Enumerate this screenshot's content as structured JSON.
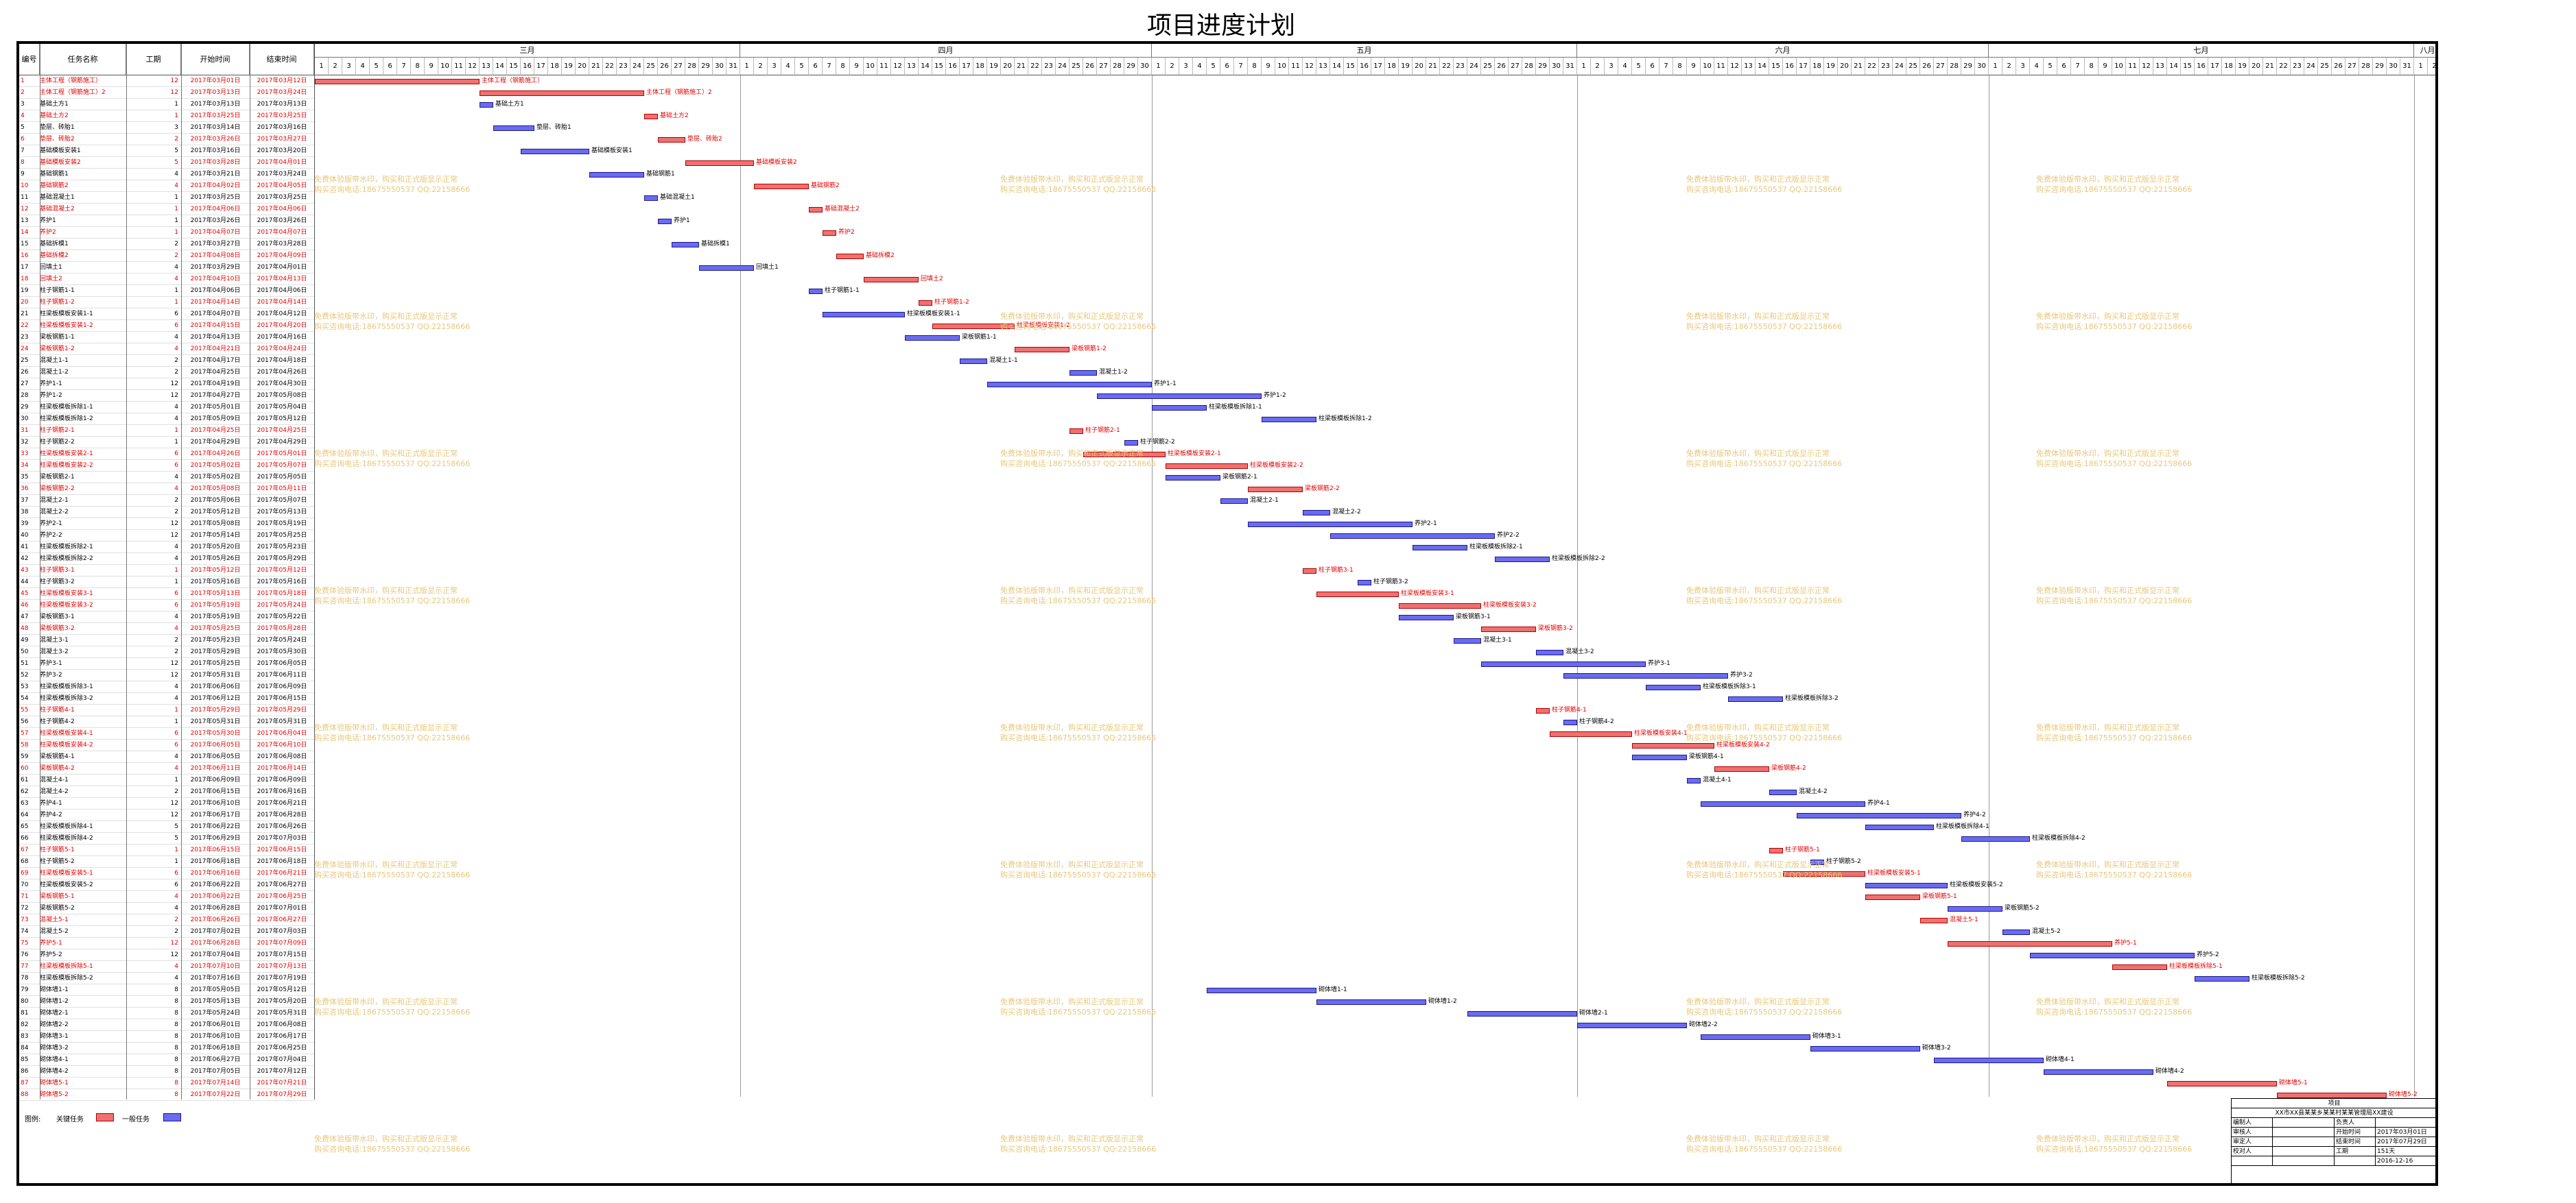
{
  "title": "项目进度计划",
  "columns": {
    "id": "编号",
    "name": "任务名称",
    "duration": "工期",
    "start": "开始时间",
    "end": "结束时间"
  },
  "months": [
    {
      "name": "三月",
      "days": 31,
      "from": 1
    },
    {
      "name": "四月",
      "days": 30,
      "from": 1
    },
    {
      "name": "五月",
      "days": 31,
      "from": 1
    },
    {
      "name": "六月",
      "days": 30,
      "from": 1
    },
    {
      "name": "七月",
      "days": 31,
      "from": 1
    },
    {
      "name": "八月",
      "days": 2,
      "from": 1
    }
  ],
  "tasks": [
    [
      "1",
      "主体工程（钢筋施工）",
      "12",
      "2017年03月01日",
      "2017年03月12日",
      1
    ],
    [
      "2",
      "主体工程（钢筋施工）2",
      "12",
      "2017年03月13日",
      "2017年03月24日",
      1
    ],
    [
      "3",
      "基础土方1",
      "1",
      "2017年03月13日",
      "2017年03月13日",
      0
    ],
    [
      "4",
      "基础土方2",
      "1",
      "2017年03月25日",
      "2017年03月25日",
      1
    ],
    [
      "5",
      "垫层、砖胎1",
      "3",
      "2017年03月14日",
      "2017年03月16日",
      0
    ],
    [
      "6",
      "垫层、砖胎2",
      "2",
      "2017年03月26日",
      "2017年03月27日",
      1
    ],
    [
      "7",
      "基础模板安装1",
      "5",
      "2017年03月16日",
      "2017年03月20日",
      0
    ],
    [
      "8",
      "基础模板安装2",
      "5",
      "2017年03月28日",
      "2017年04月01日",
      1
    ],
    [
      "9",
      "基础钢筋1",
      "4",
      "2017年03月21日",
      "2017年03月24日",
      0
    ],
    [
      "10",
      "基础钢筋2",
      "4",
      "2017年04月02日",
      "2017年04月05日",
      1
    ],
    [
      "11",
      "基础混凝土1",
      "1",
      "2017年03月25日",
      "2017年03月25日",
      0
    ],
    [
      "12",
      "基础混凝土2",
      "1",
      "2017年04月06日",
      "2017年04月06日",
      1
    ],
    [
      "13",
      "养护1",
      "1",
      "2017年03月26日",
      "2017年03月26日",
      0
    ],
    [
      "14",
      "养护2",
      "1",
      "2017年04月07日",
      "2017年04月07日",
      1
    ],
    [
      "15",
      "基础拆模1",
      "2",
      "2017年03月27日",
      "2017年03月28日",
      0
    ],
    [
      "16",
      "基础拆模2",
      "2",
      "2017年04月08日",
      "2017年04月09日",
      1
    ],
    [
      "17",
      "回填土1",
      "4",
      "2017年03月29日",
      "2017年04月01日",
      0
    ],
    [
      "18",
      "回填土2",
      "4",
      "2017年04月10日",
      "2017年04月13日",
      1
    ],
    [
      "19",
      "柱子钢筋1-1",
      "1",
      "2017年04月06日",
      "2017年04月06日",
      0
    ],
    [
      "20",
      "柱子钢筋1-2",
      "1",
      "2017年04月14日",
      "2017年04月14日",
      1
    ],
    [
      "21",
      "柱梁板模板安装1-1",
      "6",
      "2017年04月07日",
      "2017年04月12日",
      0
    ],
    [
      "22",
      "柱梁板模板安装1-2",
      "6",
      "2017年04月15日",
      "2017年04月20日",
      1
    ],
    [
      "23",
      "梁板钢筋1-1",
      "4",
      "2017年04月13日",
      "2017年04月16日",
      0
    ],
    [
      "24",
      "梁板钢筋1-2",
      "4",
      "2017年04月21日",
      "2017年04月24日",
      1
    ],
    [
      "25",
      "混凝土1-1",
      "2",
      "2017年04月17日",
      "2017年04月18日",
      0
    ],
    [
      "26",
      "混凝土1-2",
      "2",
      "2017年04月25日",
      "2017年04月26日",
      0
    ],
    [
      "27",
      "养护1-1",
      "12",
      "2017年04月19日",
      "2017年04月30日",
      0
    ],
    [
      "28",
      "养护1-2",
      "12",
      "2017年04月27日",
      "2017年05月08日",
      0
    ],
    [
      "29",
      "柱梁板模板拆除1-1",
      "4",
      "2017年05月01日",
      "2017年05月04日",
      0
    ],
    [
      "30",
      "柱梁板模板拆除1-2",
      "4",
      "2017年05月09日",
      "2017年05月12日",
      0
    ],
    [
      "31",
      "柱子钢筋2-1",
      "1",
      "2017年04月25日",
      "2017年04月25日",
      1
    ],
    [
      "32",
      "柱子钢筋2-2",
      "1",
      "2017年04月29日",
      "2017年04月29日",
      0
    ],
    [
      "33",
      "柱梁板模板安装2-1",
      "6",
      "2017年04月26日",
      "2017年05月01日",
      1
    ],
    [
      "34",
      "柱梁板模板安装2-2",
      "6",
      "2017年05月02日",
      "2017年05月07日",
      1
    ],
    [
      "35",
      "梁板钢筋2-1",
      "4",
      "2017年05月02日",
      "2017年05月05日",
      0
    ],
    [
      "36",
      "梁板钢筋2-2",
      "4",
      "2017年05月08日",
      "2017年05月11日",
      1
    ],
    [
      "37",
      "混凝土2-1",
      "2",
      "2017年05月06日",
      "2017年05月07日",
      0
    ],
    [
      "38",
      "混凝土2-2",
      "2",
      "2017年05月12日",
      "2017年05月13日",
      0
    ],
    [
      "39",
      "养护2-1",
      "12",
      "2017年05月08日",
      "2017年05月19日",
      0
    ],
    [
      "40",
      "养护2-2",
      "12",
      "2017年05月14日",
      "2017年05月25日",
      0
    ],
    [
      "41",
      "柱梁板模板拆除2-1",
      "4",
      "2017年05月20日",
      "2017年05月23日",
      0
    ],
    [
      "42",
      "柱梁板模板拆除2-2",
      "4",
      "2017年05月26日",
      "2017年05月29日",
      0
    ],
    [
      "43",
      "柱子钢筋3-1",
      "1",
      "2017年05月12日",
      "2017年05月12日",
      1
    ],
    [
      "44",
      "柱子钢筋3-2",
      "1",
      "2017年05月16日",
      "2017年05月16日",
      0
    ],
    [
      "45",
      "柱梁板模板安装3-1",
      "6",
      "2017年05月13日",
      "2017年05月18日",
      1
    ],
    [
      "46",
      "柱梁板模板安装3-2",
      "6",
      "2017年05月19日",
      "2017年05月24日",
      1
    ],
    [
      "47",
      "梁板钢筋3-1",
      "4",
      "2017年05月19日",
      "2017年05月22日",
      0
    ],
    [
      "48",
      "梁板钢筋3-2",
      "4",
      "2017年05月25日",
      "2017年05月28日",
      1
    ],
    [
      "49",
      "混凝土3-1",
      "2",
      "2017年05月23日",
      "2017年05月24日",
      0
    ],
    [
      "50",
      "混凝土3-2",
      "2",
      "2017年05月29日",
      "2017年05月30日",
      0
    ],
    [
      "51",
      "养护3-1",
      "12",
      "2017年05月25日",
      "2017年06月05日",
      0
    ],
    [
      "52",
      "养护3-2",
      "12",
      "2017年05月31日",
      "2017年06月11日",
      0
    ],
    [
      "53",
      "柱梁板模板拆除3-1",
      "4",
      "2017年06月06日",
      "2017年06月09日",
      0
    ],
    [
      "54",
      "柱梁板模板拆除3-2",
      "4",
      "2017年06月12日",
      "2017年06月15日",
      0
    ],
    [
      "55",
      "柱子钢筋4-1",
      "1",
      "2017年05月29日",
      "2017年05月29日",
      1
    ],
    [
      "56",
      "柱子钢筋4-2",
      "1",
      "2017年05月31日",
      "2017年05月31日",
      0
    ],
    [
      "57",
      "柱梁板模板安装4-1",
      "6",
      "2017年05月30日",
      "2017年06月04日",
      1
    ],
    [
      "58",
      "柱梁板模板安装4-2",
      "6",
      "2017年06月05日",
      "2017年06月10日",
      1
    ],
    [
      "59",
      "梁板钢筋4-1",
      "4",
      "2017年06月05日",
      "2017年06月08日",
      0
    ],
    [
      "60",
      "梁板钢筋4-2",
      "4",
      "2017年06月11日",
      "2017年06月14日",
      1
    ],
    [
      "61",
      "混凝土4-1",
      "1",
      "2017年06月09日",
      "2017年06月09日",
      0
    ],
    [
      "62",
      "混凝土4-2",
      "2",
      "2017年06月15日",
      "2017年06月16日",
      0
    ],
    [
      "63",
      "养护4-1",
      "12",
      "2017年06月10日",
      "2017年06月21日",
      0
    ],
    [
      "64",
      "养护4-2",
      "12",
      "2017年06月17日",
      "2017年06月28日",
      0
    ],
    [
      "65",
      "柱梁板模板拆除4-1",
      "5",
      "2017年06月22日",
      "2017年06月26日",
      0
    ],
    [
      "66",
      "柱梁板模板拆除4-2",
      "5",
      "2017年06月29日",
      "2017年07月03日",
      0
    ],
    [
      "67",
      "柱子钢筋5-1",
      "1",
      "2017年06月15日",
      "2017年06月15日",
      1
    ],
    [
      "68",
      "柱子钢筋5-2",
      "1",
      "2017年06月18日",
      "2017年06月18日",
      0
    ],
    [
      "69",
      "柱梁板模板安装5-1",
      "6",
      "2017年06月16日",
      "2017年06月21日",
      1
    ],
    [
      "70",
      "柱梁板模板安装5-2",
      "6",
      "2017年06月22日",
      "2017年06月27日",
      0
    ],
    [
      "71",
      "梁板钢筋5-1",
      "4",
      "2017年06月22日",
      "2017年06月25日",
      1
    ],
    [
      "72",
      "梁板钢筋5-2",
      "4",
      "2017年06月28日",
      "2017年07月01日",
      0
    ],
    [
      "73",
      "混凝土5-1",
      "2",
      "2017年06月26日",
      "2017年06月27日",
      1
    ],
    [
      "74",
      "混凝土5-2",
      "2",
      "2017年07月02日",
      "2017年07月03日",
      0
    ],
    [
      "75",
      "养护5-1",
      "12",
      "2017年06月28日",
      "2017年07月09日",
      1
    ],
    [
      "76",
      "养护5-2",
      "12",
      "2017年07月04日",
      "2017年07月15日",
      0
    ],
    [
      "77",
      "柱梁板模板拆除5-1",
      "4",
      "2017年07月10日",
      "2017年07月13日",
      1
    ],
    [
      "78",
      "柱梁板模板拆除5-2",
      "4",
      "2017年07月16日",
      "2017年07月19日",
      0
    ],
    [
      "79",
      "砌体墙1-1",
      "8",
      "2017年05月05日",
      "2017年05月12日",
      0
    ],
    [
      "80",
      "砌体墙1-2",
      "8",
      "2017年05月13日",
      "2017年05月20日",
      0
    ],
    [
      "81",
      "砌体墙2-1",
      "8",
      "2017年05月24日",
      "2017年05月31日",
      0
    ],
    [
      "82",
      "砌体墙2-2",
      "8",
      "2017年06月01日",
      "2017年06月08日",
      0
    ],
    [
      "83",
      "砌体墙3-1",
      "8",
      "2017年06月10日",
      "2017年06月17日",
      0
    ],
    [
      "84",
      "砌体墙3-2",
      "8",
      "2017年06月18日",
      "2017年06月25日",
      0
    ],
    [
      "85",
      "砌体墙4-1",
      "8",
      "2017年06月27日",
      "2017年07月04日",
      0
    ],
    [
      "86",
      "砌体墙4-2",
      "8",
      "2017年07月05日",
      "2017年07月12日",
      0
    ],
    [
      "87",
      "砌体墙5-1",
      "8",
      "2017年07月14日",
      "2017年07月21日",
      1
    ],
    [
      "88",
      "砌体墙5-2",
      "8",
      "2017年07月22日",
      "2017年07月29日",
      1
    ]
  ],
  "watermark": [
    "免费体验版带水印，购买和正式版显示正常",
    "购买咨询电话:18675550537 QQ:22158666"
  ],
  "legend": {
    "title": "图例:",
    "critical": "关键任务",
    "normal": "一般任务"
  },
  "colors": {
    "critical": "#f07070",
    "normal": "#6b6bf0",
    "watermark": "#e8c77a"
  },
  "info": {
    "header": "项目",
    "name": "XX市XX县某某乡某某村某某管理局XX建设",
    "rows": [
      [
        "编制人",
        "",
        "负责人",
        ""
      ],
      [
        "审核人",
        "",
        "开始时间",
        "2017年03月01日"
      ],
      [
        "审定人",
        "",
        "结束时间",
        "2017年07月29日"
      ],
      [
        "校对人",
        "",
        "工期",
        "151天"
      ],
      [
        "",
        "",
        "",
        "2016-12-16"
      ]
    ]
  }
}
